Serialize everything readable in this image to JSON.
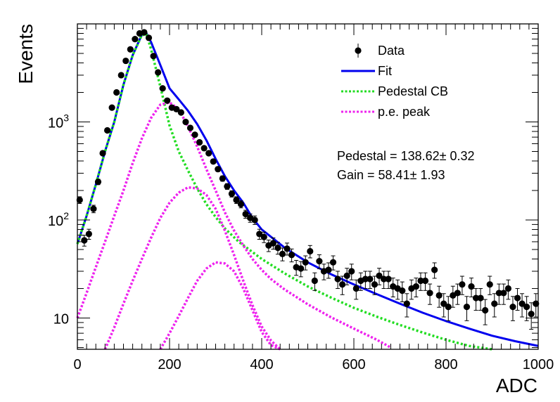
{
  "chart_data": {
    "type": "scatter",
    "xlabel": "ADC",
    "ylabel": "Events",
    "xlim": [
      0,
      1000
    ],
    "ylim": [
      4.8,
      10000
    ],
    "yscale": "log",
    "grid": false,
    "legend_position": "top-right",
    "x_ticks": [
      {
        "value": 0,
        "label": "0"
      },
      {
        "value": 200,
        "label": "200"
      },
      {
        "value": 400,
        "label": "400"
      },
      {
        "value": 600,
        "label": "600"
      },
      {
        "value": 800,
        "label": "800"
      },
      {
        "value": 1000,
        "label": "1000"
      }
    ],
    "y_ticks": [
      {
        "value": 10,
        "base": "10",
        "exp": ""
      },
      {
        "value": 100,
        "base": "10",
        "exp": "2"
      },
      {
        "value": 1000,
        "base": "10",
        "exp": "3"
      }
    ],
    "legend": [
      {
        "label": "Data",
        "color": "#000000",
        "style": "marker"
      },
      {
        "label": "Fit",
        "color": "#0000ee",
        "style": "solid"
      },
      {
        "label": "Pedestal CB",
        "color": "#22dd22",
        "style": "dotted"
      },
      {
        "label": "p.e. peak",
        "color": "#ee22ee",
        "style": "dotted"
      }
    ],
    "annotations": [
      {
        "text": "Pedestal = 138.62± 0.32"
      },
      {
        "text": "Gain = 58.41± 1.93"
      }
    ],
    "series": [
      {
        "name": "Data",
        "color": "#000000",
        "x": [
          5,
          15,
          25,
          35,
          45,
          55,
          65,
          75,
          85,
          95,
          105,
          115,
          125,
          135,
          145,
          155,
          165,
          175,
          185,
          195,
          205,
          215,
          225,
          235,
          245,
          255,
          265,
          275,
          285,
          295,
          305,
          315,
          325,
          335,
          345,
          355,
          365,
          375,
          385,
          395,
          405,
          415,
          425,
          435,
          445,
          455,
          465,
          475,
          485,
          495,
          505,
          515,
          525,
          535,
          545,
          555,
          565,
          575,
          585,
          595,
          605,
          615,
          625,
          635,
          645,
          655,
          665,
          675,
          685,
          695,
          705,
          715,
          725,
          735,
          745,
          755,
          765,
          775,
          785,
          795,
          805,
          815,
          825,
          835,
          845,
          855,
          865,
          875,
          885,
          895,
          905,
          915,
          925,
          935,
          945,
          955,
          965,
          975,
          985,
          995
        ],
        "y": [
          160,
          62,
          72,
          130,
          245,
          480,
          820,
          1400,
          2000,
          3000,
          4200,
          5500,
          7000,
          8000,
          8200,
          7200,
          4700,
          3200,
          2200,
          1650,
          1400,
          1350,
          1250,
          1000,
          870,
          740,
          620,
          540,
          480,
          395,
          330,
          265,
          220,
          185,
          160,
          145,
          115,
          105,
          100,
          72,
          67,
          55,
          58,
          52,
          45,
          51,
          44,
          33,
          32,
          37,
          48,
          24,
          38,
          30,
          31,
          37,
          25,
          22,
          27,
          30,
          20,
          24,
          25,
          25,
          22,
          27,
          25,
          25,
          21,
          20,
          19,
          14,
          20,
          21,
          24,
          24,
          18,
          31,
          17,
          14,
          13,
          17,
          18,
          22,
          13,
          21,
          16,
          16,
          12,
          22,
          14,
          18,
          18,
          20,
          13,
          16,
          14,
          13,
          11,
          14
        ]
      },
      {
        "name": "Fit",
        "color": "#0000ee",
        "x": [
          0,
          20,
          40,
          60,
          80,
          100,
          120,
          140,
          150,
          160,
          180,
          200,
          220,
          240,
          260,
          280,
          300,
          320,
          340,
          360,
          380,
          400,
          450,
          500,
          550,
          600,
          650,
          700,
          750,
          800,
          850,
          900,
          950,
          1000
        ],
        "y": [
          57,
          110,
          230,
          500,
          1000,
          2400,
          4800,
          7800,
          8000,
          6500,
          3800,
          2200,
          1700,
          1300,
          950,
          650,
          420,
          280,
          200,
          150,
          105,
          80,
          52,
          37,
          28,
          22,
          17.5,
          14,
          11.3,
          9.3,
          7.8,
          6.6,
          5.8,
          5.2
        ]
      },
      {
        "name": "Pedestal CB",
        "color": "#22dd22",
        "x": [
          0,
          20,
          40,
          60,
          80,
          100,
          120,
          140,
          150,
          160,
          180,
          200,
          220,
          240,
          260,
          280,
          300,
          320,
          350,
          400,
          450,
          500,
          550,
          600,
          650,
          700,
          750,
          800,
          850,
          900
        ],
        "y": [
          57,
          110,
          230,
          500,
          1000,
          2400,
          4800,
          7700,
          7800,
          5500,
          2300,
          920,
          500,
          320,
          210,
          145,
          107,
          82,
          60,
          40,
          28.5,
          21,
          16.2,
          12.7,
          10.3,
          8.5,
          7.1,
          6.0,
          5.2,
          4.5
        ]
      },
      {
        "name": "p.e. peak 1",
        "color": "#ee22ee",
        "x": [
          0,
          20,
          40,
          60,
          80,
          100,
          120,
          140,
          160,
          180,
          200,
          220,
          240,
          260,
          280,
          300,
          320,
          340,
          360,
          380,
          400,
          420,
          450,
          500,
          550,
          600,
          650,
          680
        ],
        "y": [
          10,
          18,
          33,
          60,
          110,
          200,
          380,
          680,
          1100,
          1500,
          1580,
          1350,
          900,
          560,
          330,
          200,
          120,
          78,
          55,
          40,
          31,
          25,
          19.5,
          13.8,
          10.2,
          7.8,
          6.0,
          5.0
        ]
      },
      {
        "name": "p.e. peak 2",
        "color": "#ee22ee",
        "x": [
          60,
          80,
          100,
          120,
          140,
          160,
          180,
          200,
          220,
          240,
          260,
          280,
          300,
          320,
          340,
          360,
          380,
          400,
          420,
          440
        ],
        "y": [
          4.8,
          8,
          14,
          24,
          40,
          66,
          105,
          150,
          190,
          215,
          210,
          180,
          130,
          78,
          44,
          24,
          13.5,
          8.2,
          5.9,
          4.8
        ]
      },
      {
        "name": "p.e. peak 3",
        "color": "#ee22ee",
        "x": [
          180,
          200,
          220,
          240,
          260,
          280,
          300,
          320,
          340,
          360,
          380,
          400,
          420,
          440
        ],
        "y": [
          4.8,
          7,
          10.5,
          16,
          24,
          32,
          37,
          36,
          30,
          20,
          12,
          7.2,
          5.3,
          4.6
        ]
      }
    ]
  }
}
